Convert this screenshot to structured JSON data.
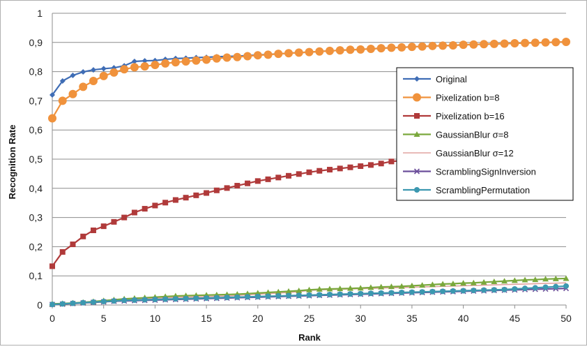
{
  "chart_data": {
    "type": "line",
    "xlabel": "Rank",
    "ylabel": "Recognition Rate",
    "xlim": [
      0,
      50
    ],
    "ylim": [
      0,
      1
    ],
    "x_ticks": [
      "0",
      "5",
      "10",
      "15",
      "20",
      "25",
      "30",
      "35",
      "40",
      "45",
      "50"
    ],
    "y_ticks": [
      "0",
      "0,1",
      "0,2",
      "0,3",
      "0,4",
      "0,5",
      "0,6",
      "0,7",
      "0,8",
      "0,9",
      "1"
    ],
    "grid": "horizontal",
    "legend_position": "right",
    "series": [
      {
        "name": "Original",
        "color": "#3f6db5",
        "marker": "diamond",
        "values": [
          0.72,
          0.768,
          0.787,
          0.799,
          0.806,
          0.81,
          0.813,
          0.82,
          0.835,
          0.837,
          0.838,
          0.842,
          0.845,
          0.846,
          0.848,
          0.849,
          0.851,
          0.852,
          0.853,
          0.855,
          0.857,
          0.859,
          0.861,
          0.863,
          0.865,
          0.867,
          0.869,
          0.871,
          0.873,
          0.875,
          0.876,
          0.878,
          0.88,
          0.882,
          0.883,
          0.885,
          0.886,
          0.888,
          0.889,
          0.89,
          0.892,
          0.893,
          0.894,
          0.895,
          0.896,
          0.897,
          0.898,
          0.899,
          0.9,
          0.901,
          0.902
        ]
      },
      {
        "name": "Pixelization b=8",
        "color": "#f0923c",
        "marker": "circle",
        "values": [
          0.64,
          0.7,
          0.723,
          0.748,
          0.768,
          0.785,
          0.797,
          0.808,
          0.815,
          0.818,
          0.823,
          0.828,
          0.832,
          0.835,
          0.838,
          0.841,
          0.845,
          0.848,
          0.85,
          0.853,
          0.856,
          0.858,
          0.861,
          0.863,
          0.865,
          0.867,
          0.869,
          0.871,
          0.873,
          0.875,
          0.876,
          0.878,
          0.88,
          0.882,
          0.883,
          0.885,
          0.886,
          0.888,
          0.889,
          0.89,
          0.892,
          0.893,
          0.894,
          0.895,
          0.896,
          0.897,
          0.898,
          0.899,
          0.9,
          0.901,
          0.902
        ]
      },
      {
        "name": "Pixelization b=16",
        "color": "#b03a3a",
        "marker": "square",
        "values": [
          0.133,
          0.182,
          0.208,
          0.235,
          0.256,
          0.27,
          0.285,
          0.3,
          0.317,
          0.33,
          0.341,
          0.351,
          0.36,
          0.368,
          0.376,
          0.384,
          0.393,
          0.401,
          0.409,
          0.417,
          0.425,
          0.431,
          0.437,
          0.443,
          0.449,
          0.455,
          0.46,
          0.464,
          0.468,
          0.472,
          0.476,
          0.48,
          0.485,
          0.492,
          0.495,
          0.497,
          0.499,
          0.501,
          0.503,
          0.505,
          0.507,
          0.509,
          0.511,
          0.513,
          0.515,
          0.517,
          0.519,
          0.521,
          0.523,
          0.525,
          0.527
        ]
      },
      {
        "name": "GaussianBlur σ=8",
        "color": "#7aa83c",
        "marker": "triangle",
        "values": [
          0.004,
          0.005,
          0.007,
          0.009,
          0.012,
          0.015,
          0.018,
          0.021,
          0.023,
          0.025,
          0.027,
          0.029,
          0.031,
          0.032,
          0.033,
          0.034,
          0.035,
          0.036,
          0.037,
          0.039,
          0.041,
          0.043,
          0.045,
          0.047,
          0.049,
          0.052,
          0.054,
          0.055,
          0.056,
          0.057,
          0.058,
          0.06,
          0.062,
          0.063,
          0.064,
          0.066,
          0.068,
          0.07,
          0.072,
          0.073,
          0.075,
          0.076,
          0.078,
          0.08,
          0.082,
          0.084,
          0.086,
          0.087,
          0.089,
          0.09,
          0.091
        ]
      },
      {
        "name": "GaussianBlur σ=12",
        "color": "#e0a3a0",
        "marker": "none",
        "values": [
          0.003,
          0.004,
          0.006,
          0.008,
          0.01,
          0.013,
          0.015,
          0.017,
          0.019,
          0.021,
          0.023,
          0.025,
          0.026,
          0.027,
          0.028,
          0.029,
          0.03,
          0.031,
          0.033,
          0.035,
          0.037,
          0.039,
          0.041,
          0.043,
          0.046,
          0.05,
          0.052,
          0.053,
          0.054,
          0.055,
          0.056,
          0.057,
          0.058,
          0.059,
          0.06,
          0.061,
          0.062,
          0.063,
          0.064,
          0.065,
          0.066,
          0.067,
          0.068,
          0.069,
          0.07,
          0.071,
          0.072,
          0.073,
          0.074,
          0.075,
          0.076
        ]
      },
      {
        "name": "ScramblingSignInversion",
        "color": "#6b4e9a",
        "marker": "cross",
        "values": [
          0.002,
          0.003,
          0.005,
          0.007,
          0.009,
          0.011,
          0.013,
          0.014,
          0.015,
          0.016,
          0.017,
          0.018,
          0.019,
          0.02,
          0.021,
          0.022,
          0.023,
          0.024,
          0.025,
          0.026,
          0.027,
          0.028,
          0.029,
          0.03,
          0.031,
          0.032,
          0.033,
          0.034,
          0.035,
          0.036,
          0.037,
          0.038,
          0.039,
          0.04,
          0.041,
          0.042,
          0.043,
          0.044,
          0.045,
          0.046,
          0.047,
          0.048,
          0.049,
          0.05,
          0.051,
          0.052,
          0.053,
          0.054,
          0.055,
          0.056,
          0.057
        ]
      },
      {
        "name": "ScramblingPermutation",
        "color": "#3c98b0",
        "marker": "circle",
        "values": [
          0.002,
          0.004,
          0.006,
          0.008,
          0.01,
          0.012,
          0.014,
          0.016,
          0.017,
          0.018,
          0.019,
          0.02,
          0.021,
          0.022,
          0.023,
          0.024,
          0.025,
          0.026,
          0.027,
          0.028,
          0.029,
          0.03,
          0.031,
          0.032,
          0.033,
          0.034,
          0.035,
          0.036,
          0.037,
          0.038,
          0.039,
          0.04,
          0.041,
          0.042,
          0.043,
          0.044,
          0.045,
          0.046,
          0.047,
          0.048,
          0.049,
          0.05,
          0.051,
          0.052,
          0.053,
          0.055,
          0.057,
          0.059,
          0.061,
          0.063,
          0.065
        ]
      }
    ]
  }
}
